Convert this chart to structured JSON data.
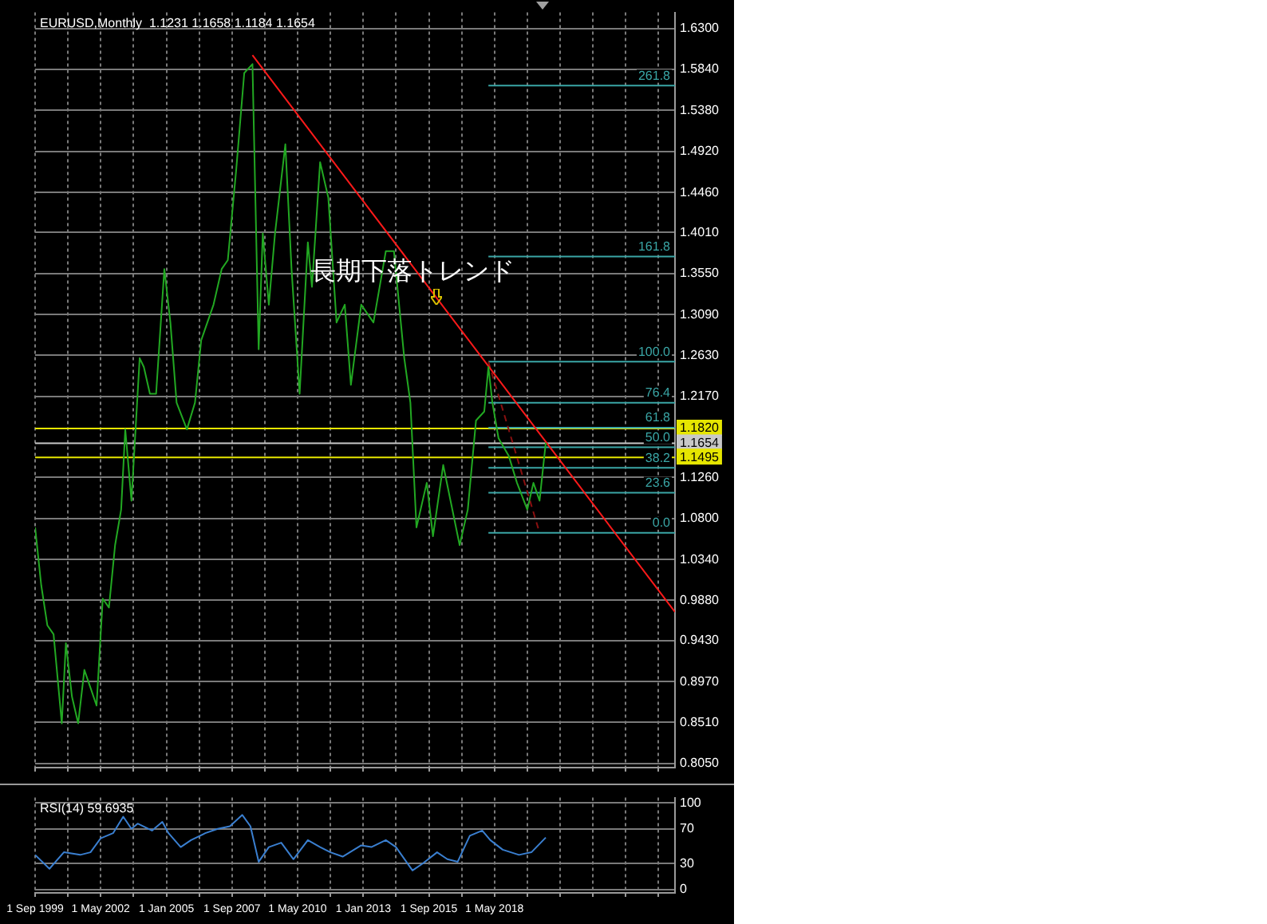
{
  "chart_data": [
    {
      "type": "line",
      "title": "EURUSD,Monthly  1.1231 1.1658 1.1184 1.1654",
      "marker": "none",
      "grid": true,
      "tick_labels": "y",
      "xlim": [
        "1999-09",
        "2025-09"
      ],
      "xticks": [
        {
          "value": "1999-09",
          "label": null
        },
        {
          "value": "2001-01",
          "label": null
        },
        {
          "value": "2002-05",
          "label": null
        },
        {
          "value": "2003-09",
          "label": null
        },
        {
          "value": "2005-01",
          "label": null
        },
        {
          "value": "2006-05",
          "label": null
        },
        {
          "value": "2007-09",
          "label": null
        },
        {
          "value": "2009-01",
          "label": null
        },
        {
          "value": "2010-05",
          "label": null
        },
        {
          "value": "2011-09",
          "label": null
        },
        {
          "value": "2013-01",
          "label": null
        },
        {
          "value": "2014-05",
          "label": null
        },
        {
          "value": "2015-09",
          "label": null
        },
        {
          "value": "2017-01",
          "label": null
        },
        {
          "value": "2018-05",
          "label": null
        },
        {
          "value": "2019-09",
          "label": null
        },
        {
          "value": "2021-01",
          "label": null
        },
        {
          "value": "2022-05",
          "label": null
        },
        {
          "value": "2023-09",
          "label": null
        },
        {
          "value": "2025-01",
          "label": null
        }
      ],
      "ylim": [
        0.8,
        1.648
      ],
      "yticks": [
        {
          "value": 1.63,
          "label": "1.6300"
        },
        {
          "value": 1.584,
          "label": "1.5840"
        },
        {
          "value": 1.538,
          "label": "1.5380"
        },
        {
          "value": 1.492,
          "label": "1.4920"
        },
        {
          "value": 1.446,
          "label": "1.4460"
        },
        {
          "value": 1.401,
          "label": "1.4010"
        },
        {
          "value": 1.355,
          "label": "1.3550"
        },
        {
          "value": 1.309,
          "label": "1.3090"
        },
        {
          "value": 1.263,
          "label": "1.2630"
        },
        {
          "value": 1.217,
          "label": "1.2170"
        },
        {
          "value": 1.126,
          "label": "1.1260"
        },
        {
          "value": 1.08,
          "label": "1.0800"
        },
        {
          "value": 1.034,
          "label": "1.0340"
        },
        {
          "value": 0.988,
          "label": "0.9880"
        },
        {
          "value": 0.943,
          "label": "0.9430"
        },
        {
          "value": 0.897,
          "label": "0.8970"
        },
        {
          "value": 0.851,
          "label": "0.8510"
        },
        {
          "value": 0.805,
          "label": "0.8050"
        }
      ],
      "ref_lines": [
        {
          "axis": "y",
          "value": 1.182,
          "label": "1.1820",
          "color": "#e6e600"
        },
        {
          "axis": "y",
          "value": 1.1654,
          "label": "1.1654",
          "color": "#c8c8c8"
        },
        {
          "axis": "y",
          "value": 1.1495,
          "label": "1.1495",
          "color": "#e6e600"
        }
      ],
      "annotations": [
        {
          "text": "長期下落トレンド",
          "x": "2015-01",
          "y": 1.356
        }
      ],
      "series": [
        {
          "color": "#22a822",
          "x": [
            "1999-09",
            "1999-12",
            "2000-03",
            "2000-06",
            "2000-10",
            "2000-12",
            "2001-03",
            "2001-06",
            "2001-09",
            "2001-12",
            "2002-03",
            "2002-06",
            "2002-09",
            "2002-12",
            "2003-03",
            "2003-05",
            "2003-08",
            "2003-12",
            "2004-02",
            "2004-05",
            "2004-08",
            "2004-12",
            "2005-03",
            "2005-06",
            "2005-11",
            "2006-03",
            "2006-06",
            "2006-12",
            "2007-04",
            "2007-07",
            "2007-11",
            "2008-03",
            "2008-07",
            "2008-10",
            "2008-12",
            "2009-03",
            "2009-06",
            "2009-11",
            "2010-02",
            "2010-06",
            "2010-10",
            "2010-12",
            "2011-04",
            "2011-08",
            "2011-12",
            "2012-04",
            "2012-07",
            "2012-12",
            "2013-06",
            "2013-12",
            "2014-04",
            "2014-09",
            "2014-12",
            "2015-03",
            "2015-08",
            "2015-11",
            "2016-04",
            "2016-12",
            "2017-04",
            "2017-08",
            "2017-12",
            "2018-02",
            "2018-04",
            "2018-07",
            "2018-12",
            "2019-04",
            "2019-09",
            "2019-12",
            "2020-03",
            "2020-06"
          ],
          "values": [
            1.07,
            1.005,
            0.96,
            0.95,
            0.85,
            0.94,
            0.88,
            0.85,
            0.91,
            0.89,
            0.87,
            0.99,
            0.98,
            1.05,
            1.09,
            1.18,
            1.1,
            1.26,
            1.25,
            1.22,
            1.22,
            1.36,
            1.3,
            1.21,
            1.18,
            1.21,
            1.28,
            1.32,
            1.36,
            1.37,
            1.47,
            1.58,
            1.59,
            1.27,
            1.4,
            1.32,
            1.4,
            1.5,
            1.36,
            1.22,
            1.39,
            1.34,
            1.48,
            1.44,
            1.3,
            1.32,
            1.23,
            1.32,
            1.3,
            1.38,
            1.38,
            1.26,
            1.21,
            1.07,
            1.12,
            1.06,
            1.14,
            1.05,
            1.09,
            1.19,
            1.2,
            1.25,
            1.21,
            1.17,
            1.15,
            1.12,
            1.09,
            1.12,
            1.1,
            1.165
          ]
        },
        {
          "color": "#ff1a1a",
          "x": [
            "2008-07",
            "2025-09"
          ],
          "values": [
            1.6,
            0.975
          ]
        },
        {
          "color": "#8a1010",
          "line_style": "dashed",
          "x": [
            "2018-02",
            "2020-03"
          ],
          "values": [
            1.256,
            1.064
          ]
        },
        {
          "name": "261.8",
          "color": "#3aa6a6",
          "x": [
            "2018-02",
            "2025-09"
          ],
          "values": [
            1.566,
            1.566
          ]
        },
        {
          "name": "161.8",
          "color": "#3aa6a6",
          "x": [
            "2018-02",
            "2025-09"
          ],
          "values": [
            1.374,
            1.374
          ]
        },
        {
          "name": "100.0",
          "color": "#3aa6a6",
          "x": [
            "2018-02",
            "2025-09"
          ],
          "values": [
            1.256,
            1.256
          ]
        },
        {
          "name": "76.4",
          "color": "#3aa6a6",
          "x": [
            "2018-02",
            "2025-09"
          ],
          "values": [
            1.21,
            1.21
          ]
        },
        {
          "name": "61.8",
          "color": "#3aa6a6",
          "x": [
            "2018-02",
            "2025-09"
          ],
          "values": [
            1.182,
            1.182
          ]
        },
        {
          "name": "50.0",
          "color": "#3aa6a6",
          "x": [
            "2018-02",
            "2025-09"
          ],
          "values": [
            1.16,
            1.16
          ]
        },
        {
          "name": "38.2",
          "color": "#3aa6a6",
          "x": [
            "2018-02",
            "2025-09"
          ],
          "values": [
            1.137,
            1.137
          ]
        },
        {
          "name": "23.6",
          "color": "#3aa6a6",
          "x": [
            "2018-02",
            "2025-09"
          ],
          "values": [
            1.109,
            1.109
          ]
        },
        {
          "name": "0.0",
          "color": "#3aa6a6",
          "x": [
            "2018-02",
            "2025-09"
          ],
          "values": [
            1.064,
            1.064
          ]
        }
      ]
    },
    {
      "type": "line",
      "title": "RSI(14) 59.6935",
      "marker": "none",
      "grid": true,
      "xlim": [
        "1999-09",
        "2025-09"
      ],
      "xticks": [
        {
          "value": "1999-09",
          "label": "1 Sep 1999"
        },
        {
          "value": "2001-01",
          "label": null
        },
        {
          "value": "2002-05",
          "label": "1 May 2002"
        },
        {
          "value": "2003-09",
          "label": null
        },
        {
          "value": "2005-01",
          "label": "1 Jan 2005"
        },
        {
          "value": "2006-05",
          "label": null
        },
        {
          "value": "2007-09",
          "label": "1 Sep 2007"
        },
        {
          "value": "2009-01",
          "label": null
        },
        {
          "value": "2010-05",
          "label": "1 May 2010"
        },
        {
          "value": "2011-09",
          "label": null
        },
        {
          "value": "2013-01",
          "label": "1 Jan 2013"
        },
        {
          "value": "2014-05",
          "label": null
        },
        {
          "value": "2015-09",
          "label": "1 Sep 2015"
        },
        {
          "value": "2017-01",
          "label": null
        },
        {
          "value": "2018-05",
          "label": "1 May 2018"
        },
        {
          "value": "2019-09",
          "label": null
        },
        {
          "value": "2021-01",
          "label": null
        },
        {
          "value": "2022-05",
          "label": null
        },
        {
          "value": "2023-09",
          "label": null
        },
        {
          "value": "2025-01",
          "label": null
        }
      ],
      "ylim": [
        -4,
        106
      ],
      "yticks": [
        100,
        70,
        30,
        0
      ],
      "series": [
        {
          "color": "#3a7fd0",
          "x": [
            "1999-09",
            "2000-04",
            "2000-11",
            "2001-07",
            "2001-12",
            "2002-05",
            "2002-11",
            "2003-04",
            "2003-08",
            "2003-11",
            "2004-06",
            "2004-11",
            "2005-02",
            "2005-08",
            "2006-01",
            "2006-08",
            "2007-02",
            "2007-08",
            "2008-02",
            "2008-06",
            "2008-10",
            "2009-03",
            "2009-09",
            "2010-03",
            "2010-10",
            "2011-04",
            "2011-09",
            "2012-03",
            "2012-12",
            "2013-05",
            "2013-12",
            "2014-05",
            "2015-01",
            "2015-06",
            "2016-01",
            "2016-06",
            "2016-11",
            "2017-05",
            "2017-11",
            "2018-03",
            "2018-09",
            "2019-05",
            "2019-11",
            "2020-06"
          ],
          "values": [
            40,
            24,
            43,
            40,
            43,
            59,
            65,
            84,
            70,
            76,
            68,
            78,
            65,
            49,
            57,
            65,
            70,
            73,
            86,
            73,
            32,
            49,
            54,
            35,
            57,
            49,
            43,
            38,
            51,
            49,
            57,
            49,
            22,
            30,
            43,
            35,
            32,
            62,
            68,
            57,
            46,
            40,
            43,
            60
          ]
        }
      ]
    }
  ]
}
